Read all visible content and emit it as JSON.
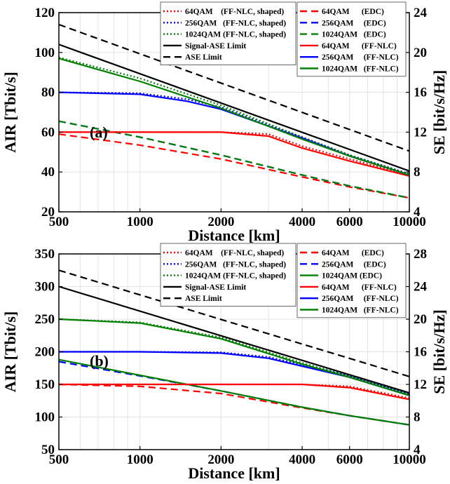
{
  "chart_data": [
    {
      "type": "line",
      "panel_label": "(a)",
      "xlabel": "Distance [km]",
      "ylabel": "AIR [Tbit/s]",
      "y2label": "SE [bit/s/Hz]",
      "xscale": "log",
      "xlim": [
        500,
        10000
      ],
      "ylim": [
        20,
        120
      ],
      "y2lim": [
        4,
        24
      ],
      "xticks": [
        "500",
        "1000",
        "2000",
        "4000",
        "6000",
        "10000"
      ],
      "yticks": [
        "20",
        "40",
        "60",
        "80",
        "100",
        "120"
      ],
      "y2ticks": [
        "4",
        "8",
        "12",
        "16",
        "20",
        "24"
      ],
      "grid": true,
      "legend_placement": "top",
      "series": [
        {
          "name": "64QAM    (FF-NLC, shaped)",
          "color": "#ff0000",
          "style": "dotted",
          "x": [
            500,
            1000,
            2000,
            3000,
            4000,
            6000,
            10000
          ],
          "y": [
            60,
            60,
            60,
            59,
            53,
            46.5,
            38.5
          ]
        },
        {
          "name": "256QAM   (FF-NLC, shaped)",
          "color": "#0000ff",
          "style": "dotted",
          "x": [
            500,
            1000,
            1500,
            2000,
            3000,
            4000,
            6000,
            10000
          ],
          "y": [
            80,
            79.5,
            76.5,
            72.5,
            63.5,
            57.5,
            48.5,
            39
          ]
        },
        {
          "name": "1024QAM (FF-NLC, shaped)",
          "color": "#008000",
          "style": "dotted",
          "x": [
            500,
            1000,
            2000,
            4000,
            6000,
            10000
          ],
          "y": [
            97.5,
            87,
            73.5,
            57.5,
            48.5,
            39
          ]
        },
        {
          "name": "Signal-ASE Limit",
          "color": "#000000",
          "style": "solid",
          "x": [
            500,
            10000
          ],
          "y": [
            104,
            40.5
          ]
        },
        {
          "name": "ASE Limit",
          "color": "#000000",
          "style": "dashed",
          "x": [
            500,
            10000
          ],
          "y": [
            114,
            50.5
          ]
        },
        {
          "name": "64QAM      (EDC)",
          "color": "#ff0000",
          "style": "dashed",
          "x": [
            500,
            1000,
            2000,
            4000,
            6000,
            10000
          ],
          "y": [
            59,
            53.5,
            46.5,
            37.5,
            32.5,
            27
          ]
        },
        {
          "name": "256QAM     (EDC)",
          "color": "#0000ff",
          "style": "dashed",
          "x": [
            500,
            1000,
            2000,
            4000,
            6000,
            10000
          ],
          "y": [
            65.5,
            57.5,
            48.5,
            38.5,
            33,
            27
          ]
        },
        {
          "name": "1024QAM   (EDC)",
          "color": "#008000",
          "style": "dashed",
          "x": [
            500,
            1000,
            2000,
            4000,
            6000,
            10000
          ],
          "y": [
            65.5,
            57.5,
            48.5,
            38.5,
            33,
            27
          ]
        },
        {
          "name": "64QAM      (FF-NLC)",
          "color": "#ff0000",
          "style": "solid",
          "x": [
            500,
            1000,
            2000,
            3000,
            4000,
            6000,
            10000
          ],
          "y": [
            60,
            60,
            60,
            58,
            52,
            45.5,
            38
          ]
        },
        {
          "name": "256QAM     (FF-NLC)",
          "color": "#0000ff",
          "style": "solid",
          "x": [
            500,
            1000,
            1500,
            2000,
            3000,
            4000,
            6000,
            10000
          ],
          "y": [
            80,
            79,
            75.5,
            71.5,
            63,
            57,
            48,
            38.5
          ]
        },
        {
          "name": "1024QAM   (FF-NLC)",
          "color": "#008000",
          "style": "solid",
          "x": [
            500,
            1000,
            2000,
            4000,
            6000,
            10000
          ],
          "y": [
            97,
            85.5,
            72,
            56.5,
            48,
            38.5
          ]
        }
      ]
    },
    {
      "type": "line",
      "panel_label": "(b)",
      "xlabel": "Distance [km]",
      "ylabel": "AIR [Tbit/s]",
      "y2label": "SE [bit/s/Hz]",
      "xscale": "log",
      "xlim": [
        500,
        10000
      ],
      "ylim": [
        50,
        350
      ],
      "y2lim": [
        4,
        28
      ],
      "xticks": [
        "500",
        "1000",
        "2000",
        "4000",
        "6000",
        "10000"
      ],
      "yticks": [
        "50",
        "100",
        "150",
        "200",
        "250",
        "300",
        "350"
      ],
      "y2ticks": [
        "4",
        "8",
        "12",
        "16",
        "20",
        "24",
        "28"
      ],
      "grid": true,
      "legend_placement": "top",
      "series": [
        {
          "name": "64QAM    (FF-NLC, shaped)",
          "color": "#ff0000",
          "style": "dotted",
          "x": [
            500,
            2000,
            4000,
            6000,
            10000
          ],
          "y": [
            150,
            150,
            150,
            147,
            129
          ]
        },
        {
          "name": "256QAM   (FF-NLC, shaped)",
          "color": "#0000ff",
          "style": "dotted",
          "x": [
            500,
            1000,
            2000,
            3000,
            4000,
            6000,
            10000
          ],
          "y": [
            200,
            200,
            199,
            192,
            180,
            163,
            135
          ]
        },
        {
          "name": "1024QAM (FF-NLC, shaped)",
          "color": "#008000",
          "style": "dotted",
          "x": [
            500,
            1000,
            2000,
            4000,
            6000,
            10000
          ],
          "y": [
            250,
            245,
            222,
            183,
            163,
            135
          ]
        },
        {
          "name": "Signal-ASE Limit",
          "color": "#000000",
          "style": "solid",
          "x": [
            500,
            10000
          ],
          "y": [
            300,
            137
          ]
        },
        {
          "name": "ASE Limit",
          "color": "#000000",
          "style": "dashed",
          "x": [
            500,
            10000
          ],
          "y": [
            325,
            162
          ]
        },
        {
          "name": "64QAM      (EDC)",
          "color": "#ff0000",
          "style": "dashed",
          "x": [
            500,
            1000,
            2000,
            4000,
            6000,
            10000
          ],
          "y": [
            150,
            147,
            136,
            114,
            102,
            88
          ]
        },
        {
          "name": "256QAM     (EDC)",
          "color": "#0000ff",
          "style": "dashed",
          "x": [
            500,
            1000,
            2000,
            4000,
            6000,
            10000
          ],
          "y": [
            185,
            163,
            140,
            115,
            102,
            88
          ]
        },
        {
          "name": "1024QAM (EDC)",
          "color": "#008000",
          "style": "solid",
          "x": [
            500,
            1000,
            2000,
            4000,
            6000,
            10000
          ],
          "y": [
            188,
            164,
            140,
            115,
            102,
            88
          ]
        },
        {
          "name": "64QAM      (FF-NLC)",
          "color": "#ff0000",
          "style": "solid",
          "x": [
            500,
            2000,
            4000,
            6000,
            10000
          ],
          "y": [
            150,
            150,
            150,
            145,
            127
          ]
        },
        {
          "name": "256QAM     (FF-NLC)",
          "color": "#0000ff",
          "style": "solid",
          "x": [
            500,
            1000,
            2000,
            3000,
            4000,
            6000,
            10000
          ],
          "y": [
            200,
            200,
            198,
            190,
            178,
            161,
            133
          ]
        },
        {
          "name": "1024QAM   (FF-NLC)",
          "color": "#008000",
          "style": "solid",
          "x": [
            500,
            1000,
            2000,
            4000,
            6000,
            10000
          ],
          "y": [
            250,
            244,
            220,
            181,
            161,
            133
          ]
        }
      ]
    }
  ]
}
